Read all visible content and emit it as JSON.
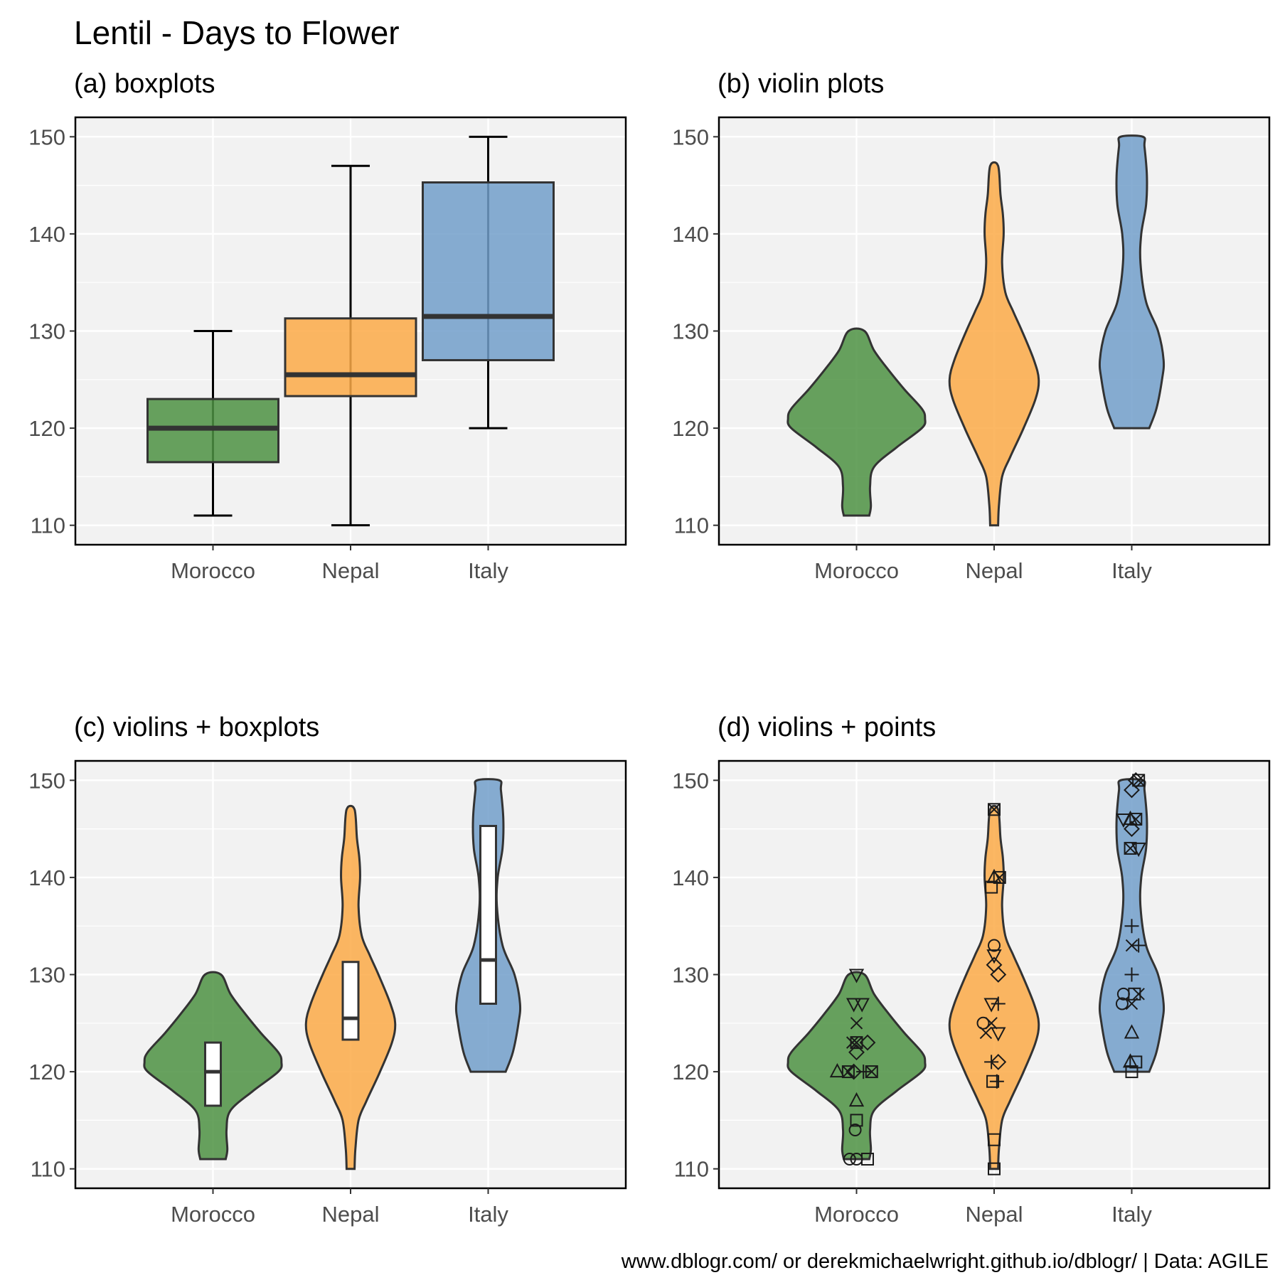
{
  "figure": {
    "title": "Lentil - Days to Flower",
    "caption": "www.dblogr.com/ or derekmichaelwright.github.io/dblogr/ | Data: AGILE"
  },
  "colors": {
    "Morocco": "#4d9243",
    "Nepal": "#fbaa48",
    "Italy": "#729fca",
    "panel_bg": "#f2f2f2",
    "grid": "#ffffff",
    "outline": "#333333"
  },
  "chart_data": [
    {
      "id": "a",
      "type": "box",
      "title": "(a) boxplots",
      "categories": [
        "Morocco",
        "Nepal",
        "Italy"
      ],
      "ylim": [
        108,
        152
      ],
      "yticks": [
        "110",
        "120",
        "130",
        "140",
        "150"
      ],
      "grid": true,
      "box": [
        {
          "category": "Morocco",
          "min": 111,
          "q1": 116.5,
          "median": 120,
          "q3": 123,
          "max": 130
        },
        {
          "category": "Nepal",
          "min": 110,
          "q1": 123.3,
          "median": 125.5,
          "q3": 131.3,
          "max": 147
        },
        {
          "category": "Italy",
          "min": 120,
          "q1": 127,
          "median": 131.5,
          "q3": 145.3,
          "max": 150
        }
      ]
    },
    {
      "id": "b",
      "type": "violin",
      "title": "(b) violin plots",
      "categories": [
        "Morocco",
        "Nepal",
        "Italy"
      ],
      "ylim": [
        108,
        152
      ],
      "yticks": [
        "110",
        "120",
        "130",
        "140",
        "150"
      ],
      "grid": true,
      "violins": [
        {
          "category": "Morocco",
          "profile": [
            [
              111,
              0.16
            ],
            [
              112,
              0.18
            ],
            [
              114,
              0.17
            ],
            [
              116,
              0.22
            ],
            [
              118,
              0.5
            ],
            [
              120,
              0.82
            ],
            [
              121,
              0.86
            ],
            [
              122,
              0.82
            ],
            [
              124,
              0.6
            ],
            [
              126,
              0.4
            ],
            [
              128,
              0.22
            ],
            [
              130,
              0.1
            ]
          ]
        },
        {
          "category": "Nepal",
          "profile": [
            [
              110,
              0.05
            ],
            [
              112,
              0.06
            ],
            [
              115,
              0.1
            ],
            [
              117,
              0.2
            ],
            [
              120,
              0.37
            ],
            [
              123,
              0.52
            ],
            [
              125,
              0.56
            ],
            [
              127,
              0.5
            ],
            [
              130,
              0.35
            ],
            [
              132,
              0.24
            ],
            [
              134,
              0.14
            ],
            [
              137,
              0.1
            ],
            [
              140,
              0.12
            ],
            [
              142,
              0.11
            ],
            [
              144,
              0.08
            ],
            [
              147,
              0.05
            ]
          ]
        },
        {
          "category": "Italy",
          "profile": [
            [
              120,
              0.22
            ],
            [
              122,
              0.31
            ],
            [
              125,
              0.38
            ],
            [
              127,
              0.4
            ],
            [
              130,
              0.33
            ],
            [
              133,
              0.18
            ],
            [
              137,
              0.11
            ],
            [
              140,
              0.12
            ],
            [
              143,
              0.18
            ],
            [
              146,
              0.19
            ],
            [
              149,
              0.16
            ],
            [
              150,
              0.14
            ]
          ]
        }
      ]
    },
    {
      "id": "c",
      "type": "violin",
      "title": "(c) violins + boxplots",
      "categories": [
        "Morocco",
        "Nepal",
        "Italy"
      ],
      "ylim": [
        108,
        152
      ],
      "yticks": [
        "110",
        "120",
        "130",
        "140",
        "150"
      ],
      "grid": true,
      "violins_ref": "b",
      "box": [
        {
          "category": "Morocco",
          "q1": 116.5,
          "median": 120,
          "q3": 123
        },
        {
          "category": "Nepal",
          "q1": 123.3,
          "median": 125.5,
          "q3": 131.3
        },
        {
          "category": "Italy",
          "q1": 127,
          "median": 131.5,
          "q3": 145.3
        }
      ]
    },
    {
      "id": "d",
      "type": "violin",
      "title": "(d) violins + points",
      "categories": [
        "Morocco",
        "Nepal",
        "Italy"
      ],
      "ylim": [
        108,
        152
      ],
      "yticks": [
        "110",
        "120",
        "130",
        "140",
        "150"
      ],
      "grid": true,
      "violins_ref": "b",
      "points": [
        {
          "category": "Morocco",
          "y": 130,
          "offset": 0.0,
          "shape": "triangle-down"
        },
        {
          "category": "Morocco",
          "y": 127,
          "offset": -0.02,
          "shape": "triangle-down"
        },
        {
          "category": "Morocco",
          "y": 127,
          "offset": 0.04,
          "shape": "triangle-down"
        },
        {
          "category": "Morocco",
          "y": 125,
          "offset": 0.0,
          "shape": "cross"
        },
        {
          "category": "Morocco",
          "y": 123,
          "offset": -0.03,
          "shape": "cross"
        },
        {
          "category": "Morocco",
          "y": 123,
          "offset": 0.0,
          "shape": "square-cross"
        },
        {
          "category": "Morocco",
          "y": 123,
          "offset": 0.08,
          "shape": "diamond"
        },
        {
          "category": "Morocco",
          "y": 122,
          "offset": 0.0,
          "shape": "diamond"
        },
        {
          "category": "Morocco",
          "y": 120,
          "offset": -0.14,
          "shape": "triangle"
        },
        {
          "category": "Morocco",
          "y": 120,
          "offset": -0.06,
          "shape": "square-cross"
        },
        {
          "category": "Morocco",
          "y": 120,
          "offset": -0.02,
          "shape": "diamond"
        },
        {
          "category": "Morocco",
          "y": 120,
          "offset": 0.05,
          "shape": "plus"
        },
        {
          "category": "Morocco",
          "y": 120,
          "offset": 0.11,
          "shape": "square-cross"
        },
        {
          "category": "Morocco",
          "y": 117,
          "offset": 0.0,
          "shape": "triangle"
        },
        {
          "category": "Morocco",
          "y": 115,
          "offset": 0.0,
          "shape": "square"
        },
        {
          "category": "Morocco",
          "y": 114,
          "offset": -0.01,
          "shape": "circle"
        },
        {
          "category": "Morocco",
          "y": 111,
          "offset": -0.05,
          "shape": "circle"
        },
        {
          "category": "Morocco",
          "y": 111,
          "offset": 0.0,
          "shape": "circle"
        },
        {
          "category": "Morocco",
          "y": 111,
          "offset": 0.08,
          "shape": "square"
        },
        {
          "category": "Nepal",
          "y": 147,
          "offset": 0.0,
          "shape": "square-cross"
        },
        {
          "category": "Nepal",
          "y": 140,
          "offset": 0.0,
          "shape": "triangle"
        },
        {
          "category": "Nepal",
          "y": 140,
          "offset": 0.04,
          "shape": "square-cross"
        },
        {
          "category": "Nepal",
          "y": 139,
          "offset": -0.02,
          "shape": "square"
        },
        {
          "category": "Nepal",
          "y": 133,
          "offset": 0.0,
          "shape": "circle"
        },
        {
          "category": "Nepal",
          "y": 132,
          "offset": 0.0,
          "shape": "triangle-down"
        },
        {
          "category": "Nepal",
          "y": 131,
          "offset": 0.0,
          "shape": "diamond"
        },
        {
          "category": "Nepal",
          "y": 130,
          "offset": 0.03,
          "shape": "diamond"
        },
        {
          "category": "Nepal",
          "y": 127,
          "offset": -0.02,
          "shape": "triangle-down"
        },
        {
          "category": "Nepal",
          "y": 127,
          "offset": 0.03,
          "shape": "plus"
        },
        {
          "category": "Nepal",
          "y": 125,
          "offset": -0.08,
          "shape": "circle"
        },
        {
          "category": "Nepal",
          "y": 125,
          "offset": -0.02,
          "shape": "cross"
        },
        {
          "category": "Nepal",
          "y": 124,
          "offset": -0.06,
          "shape": "cross"
        },
        {
          "category": "Nepal",
          "y": 124,
          "offset": 0.03,
          "shape": "triangle-down"
        },
        {
          "category": "Nepal",
          "y": 121,
          "offset": -0.02,
          "shape": "plus"
        },
        {
          "category": "Nepal",
          "y": 121,
          "offset": 0.03,
          "shape": "diamond"
        },
        {
          "category": "Nepal",
          "y": 119,
          "offset": -0.01,
          "shape": "square"
        },
        {
          "category": "Nepal",
          "y": 119,
          "offset": 0.02,
          "shape": "plus"
        },
        {
          "category": "Nepal",
          "y": 113,
          "offset": 0.0,
          "shape": "square"
        },
        {
          "category": "Nepal",
          "y": 110,
          "offset": 0.0,
          "shape": "square"
        },
        {
          "category": "Italy",
          "y": 150,
          "offset": 0.03,
          "shape": "diamond"
        },
        {
          "category": "Italy",
          "y": 150,
          "offset": 0.05,
          "shape": "square-cross"
        },
        {
          "category": "Italy",
          "y": 149,
          "offset": 0.0,
          "shape": "diamond"
        },
        {
          "category": "Italy",
          "y": 146,
          "offset": -0.06,
          "shape": "triangle-down"
        },
        {
          "category": "Italy",
          "y": 146,
          "offset": -0.01,
          "shape": "triangle"
        },
        {
          "category": "Italy",
          "y": 146,
          "offset": 0.03,
          "shape": "square-cross"
        },
        {
          "category": "Italy",
          "y": 145,
          "offset": 0.0,
          "shape": "diamond"
        },
        {
          "category": "Italy",
          "y": 143,
          "offset": -0.01,
          "shape": "square-cross"
        },
        {
          "category": "Italy",
          "y": 143,
          "offset": 0.05,
          "shape": "triangle-down"
        },
        {
          "category": "Italy",
          "y": 135,
          "offset": 0.0,
          "shape": "plus"
        },
        {
          "category": "Italy",
          "y": 133,
          "offset": 0.0,
          "shape": "cross"
        },
        {
          "category": "Italy",
          "y": 133,
          "offset": 0.05,
          "shape": "plus"
        },
        {
          "category": "Italy",
          "y": 130,
          "offset": 0.0,
          "shape": "plus"
        },
        {
          "category": "Italy",
          "y": 128,
          "offset": -0.06,
          "shape": "circle"
        },
        {
          "category": "Italy",
          "y": 128,
          "offset": 0.02,
          "shape": "square"
        },
        {
          "category": "Italy",
          "y": 128,
          "offset": 0.05,
          "shape": "cross"
        },
        {
          "category": "Italy",
          "y": 127,
          "offset": -0.07,
          "shape": "circle"
        },
        {
          "category": "Italy",
          "y": 127,
          "offset": 0.0,
          "shape": "cross"
        },
        {
          "category": "Italy",
          "y": 124,
          "offset": 0.0,
          "shape": "triangle"
        },
        {
          "category": "Italy",
          "y": 121,
          "offset": -0.01,
          "shape": "triangle"
        },
        {
          "category": "Italy",
          "y": 121,
          "offset": 0.03,
          "shape": "square"
        },
        {
          "category": "Italy",
          "y": 120,
          "offset": 0.0,
          "shape": "square"
        }
      ]
    }
  ]
}
